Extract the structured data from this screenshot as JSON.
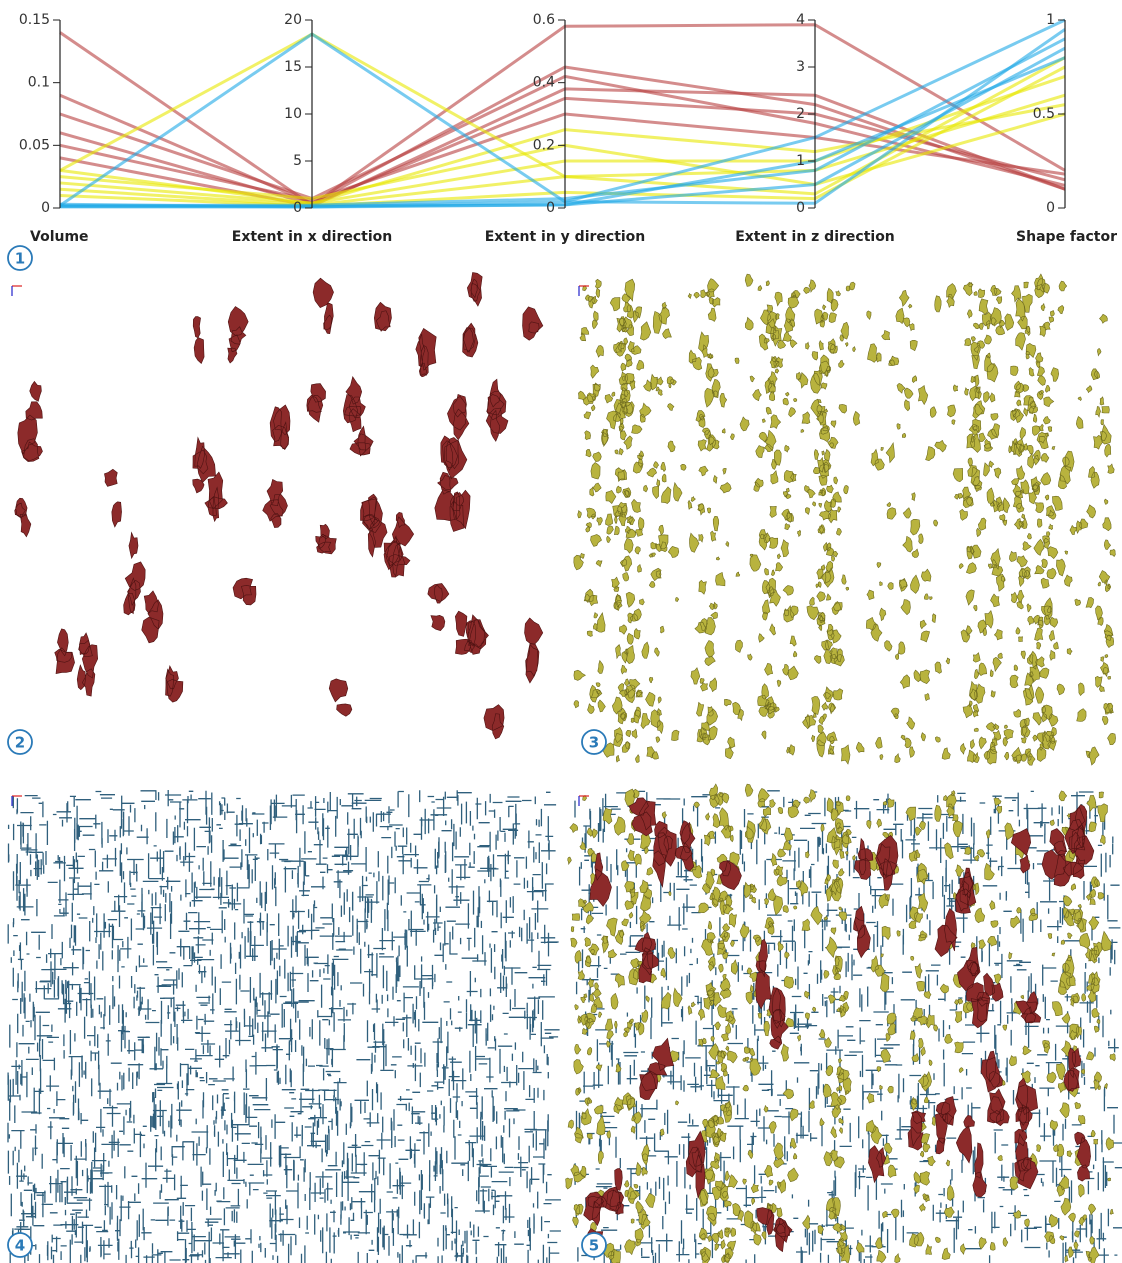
{
  "chart_data": {
    "type": "parallel",
    "categories": [
      "Volume",
      "Extent in x direction",
      "Extent in y direction",
      "Extent in z direction",
      "Shape factor"
    ],
    "axes": [
      {
        "ylim": [
          0,
          0.15
        ],
        "yticks": [
          0,
          0.05,
          0.1,
          0.15
        ]
      },
      {
        "ylim": [
          0,
          20
        ],
        "yticks": [
          0,
          5,
          10,
          15,
          20
        ]
      },
      {
        "ylim": [
          0,
          0.6
        ],
        "yticks": [
          0,
          0.2,
          0.4,
          0.6
        ]
      },
      {
        "ylim": [
          0,
          4
        ],
        "yticks": [
          0,
          1,
          2,
          3,
          4
        ]
      },
      {
        "ylim": [
          0,
          1
        ],
        "yticks": [
          0,
          0.5,
          1
        ]
      }
    ],
    "series": [
      {
        "color": "#b84040",
        "values": [
          0.14,
          0.3,
          0.58,
          3.9,
          0.2
        ]
      },
      {
        "color": "#b84040",
        "values": [
          0.09,
          0.5,
          0.45,
          2.2,
          0.1
        ]
      },
      {
        "color": "#b84040",
        "values": [
          0.075,
          1,
          0.42,
          1.8,
          0.12
        ]
      },
      {
        "color": "#b84040",
        "values": [
          0.06,
          0.4,
          0.35,
          2.0,
          0.15
        ]
      },
      {
        "color": "#b84040",
        "values": [
          0.05,
          0.8,
          0.3,
          1.5,
          0.18
        ]
      },
      {
        "color": "#b84040",
        "values": [
          0.04,
          0.2,
          0.38,
          2.4,
          0.1
        ]
      },
      {
        "color": "#e8e800",
        "values": [
          0.03,
          18.5,
          0.1,
          0.8,
          0.6
        ]
      },
      {
        "color": "#e8e800",
        "values": [
          0.025,
          1,
          0.2,
          0.5,
          0.5
        ]
      },
      {
        "color": "#e8e800",
        "values": [
          0.02,
          0.5,
          0.15,
          1.0,
          0.7
        ]
      },
      {
        "color": "#e8e800",
        "values": [
          0.015,
          0.3,
          0.1,
          0.3,
          0.8
        ]
      },
      {
        "color": "#e8e800",
        "values": [
          0.03,
          0.5,
          0.25,
          1.2,
          0.55
        ]
      },
      {
        "color": "#e8e800",
        "values": [
          0.01,
          0.2,
          0.05,
          0.2,
          0.75
        ]
      },
      {
        "color": "#1ea8e6",
        "values": [
          0.002,
          18.5,
          0.02,
          0.1,
          0.95
        ]
      },
      {
        "color": "#1ea8e6",
        "values": [
          0.001,
          0.2,
          0.01,
          0.5,
          0.85
        ]
      },
      {
        "color": "#1ea8e6",
        "values": [
          0.003,
          0.1,
          0.02,
          1.5,
          1
        ]
      },
      {
        "color": "#1ea8e6",
        "values": [
          0.002,
          0.3,
          0.03,
          0.8,
          0.9
        ]
      },
      {
        "color": "#1ea8e6",
        "values": [
          0.001,
          0.1,
          0.01,
          1.0,
          0.8
        ]
      }
    ]
  },
  "panel_labels": [
    "1",
    "2",
    "3",
    "4",
    "5"
  ]
}
